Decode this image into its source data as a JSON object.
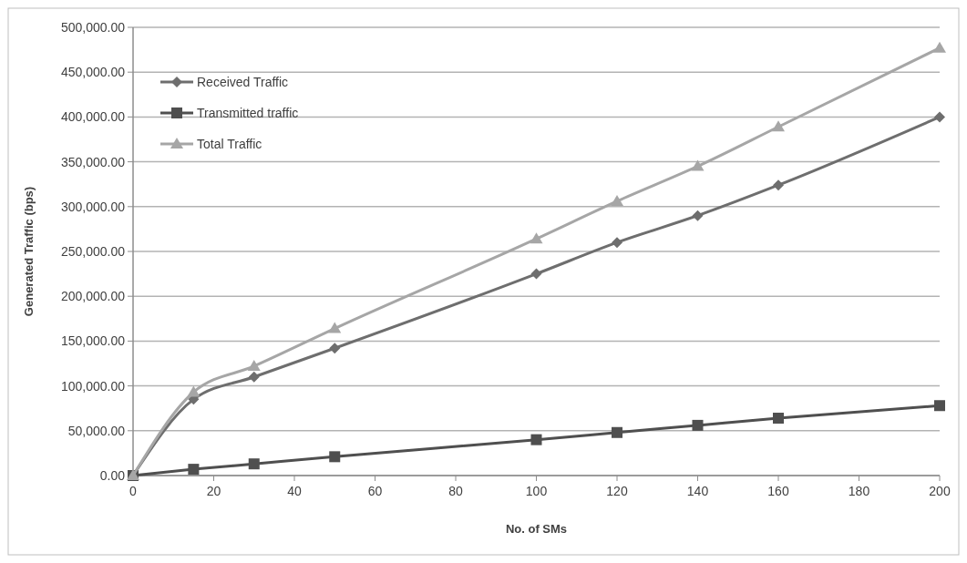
{
  "chart_data": {
    "type": "line",
    "xlabel": "No. of SMs",
    "ylabel": "Generated Traffic  (bps)",
    "x": [
      0,
      15,
      30,
      50,
      100,
      120,
      140,
      160,
      200
    ],
    "series": [
      {
        "name": "Received Traffic",
        "color": "#6e6e6e",
        "marker": "diamond",
        "values": [
          0,
          85000,
          110000,
          142000,
          225000,
          260000,
          290000,
          324000,
          400000
        ]
      },
      {
        "name": "Transmitted traffic",
        "color": "#4f4f4f",
        "marker": "square",
        "values": [
          0,
          7000,
          13000,
          21000,
          40000,
          48000,
          56000,
          64000,
          78000
        ]
      },
      {
        "name": "Total Traffic",
        "color": "#a6a6a6",
        "marker": "triangle",
        "values": [
          0,
          93000,
          122000,
          164000,
          264000,
          306000,
          345000,
          389000,
          477000
        ]
      }
    ],
    "xlim": [
      0,
      200
    ],
    "xticks": [
      0,
      20,
      40,
      60,
      80,
      100,
      120,
      140,
      160,
      180,
      200
    ],
    "ylim": [
      0,
      500000
    ],
    "yticks": [
      {
        "value": 0,
        "label": "0.00"
      },
      {
        "value": 50000,
        "label": "50,000.00"
      },
      {
        "value": 100000,
        "label": "100,000.00"
      },
      {
        "value": 150000,
        "label": "150,000.00"
      },
      {
        "value": 200000,
        "label": "200,000.00"
      },
      {
        "value": 250000,
        "label": "250,000.00"
      },
      {
        "value": 300000,
        "label": "300,000.00"
      },
      {
        "value": 350000,
        "label": "350,000.00"
      },
      {
        "value": 400000,
        "label": "400,000.00"
      },
      {
        "value": 450000,
        "label": "450,000.00"
      },
      {
        "value": 500000,
        "label": "500,000.00"
      }
    ],
    "grid": "y",
    "legend": "top left",
    "line_style": "solid"
  }
}
